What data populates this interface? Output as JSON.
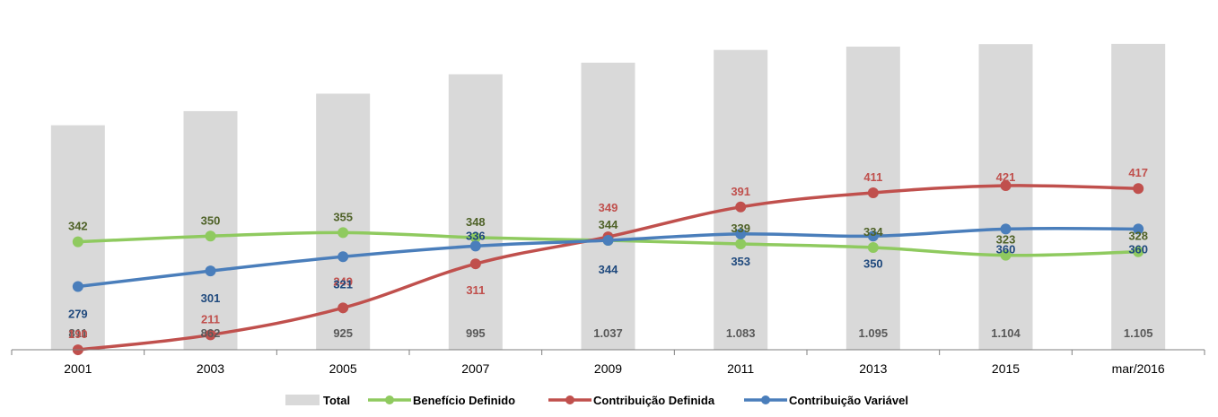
{
  "chart_data": {
    "type": "bar+line",
    "title": "",
    "xlabel": "",
    "ylabel": "",
    "categories": [
      "2001",
      "2003",
      "2005",
      "2007",
      "2009",
      "2011",
      "2013",
      "2015",
      "mar/2016"
    ],
    "bars": {
      "name": "Total",
      "values": [
        811,
        862,
        925,
        995,
        1037,
        1083,
        1095,
        1104,
        1105
      ],
      "labels": [
        "811",
        "862",
        "925",
        "995",
        "1.037",
        "1.083",
        "1.095",
        "1.104",
        "1.105"
      ],
      "color": "#d9d9d9",
      "label_color": "#595959",
      "ylim": [
        0,
        1150
      ]
    },
    "series": [
      {
        "name": "Benefício Definido",
        "values": [
          342,
          350,
          355,
          348,
          344,
          339,
          334,
          323,
          328
        ],
        "color": "#8fca5f",
        "label_color": "#4f6228",
        "label_pos": "above"
      },
      {
        "name": "Contribuição Definida",
        "values": [
          190,
          211,
          249,
          311,
          349,
          391,
          411,
          421,
          417
        ],
        "color": "#c0504d",
        "label_color": "#c0504d",
        "label_pos": "mixed"
      },
      {
        "name": "Contribuição Variável",
        "values": [
          279,
          301,
          321,
          336,
          344,
          353,
          350,
          360,
          360
        ],
        "color": "#4a7ebb",
        "label_color": "#1f497d",
        "label_pos": "mixed"
      }
    ],
    "line_ylim": [
      0,
      460
    ],
    "legend": {
      "position": "bottom",
      "entries": [
        "Total",
        "Benefício Definido",
        "Contribuição Definida",
        "Contribuição Variável"
      ]
    },
    "grid": false
  }
}
